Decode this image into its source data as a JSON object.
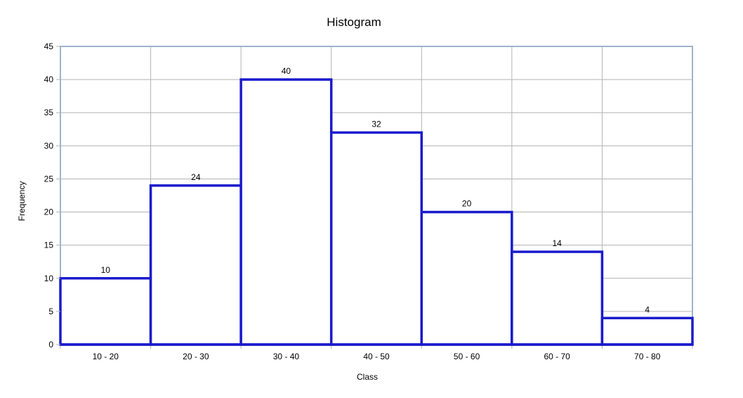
{
  "chart_data": {
    "type": "bar",
    "title": "Histogram",
    "xlabel": "Class",
    "ylabel": "Frequency",
    "categories": [
      "10 - 20",
      "20 - 30",
      "30 - 40",
      "40 - 50",
      "50 - 60",
      "60 - 70",
      "70 - 80"
    ],
    "values": [
      10,
      24,
      40,
      32,
      20,
      14,
      4
    ],
    "ylim": [
      0,
      45
    ],
    "yticks": [
      0,
      5,
      10,
      15,
      20,
      25,
      30,
      35,
      40,
      45
    ],
    "grid": true,
    "legend": "none",
    "bar_color": "#1a1acc",
    "bar_fill": "#ffffff",
    "grid_color": "#b3b3b3",
    "frame_color": "#9fb4cc"
  }
}
